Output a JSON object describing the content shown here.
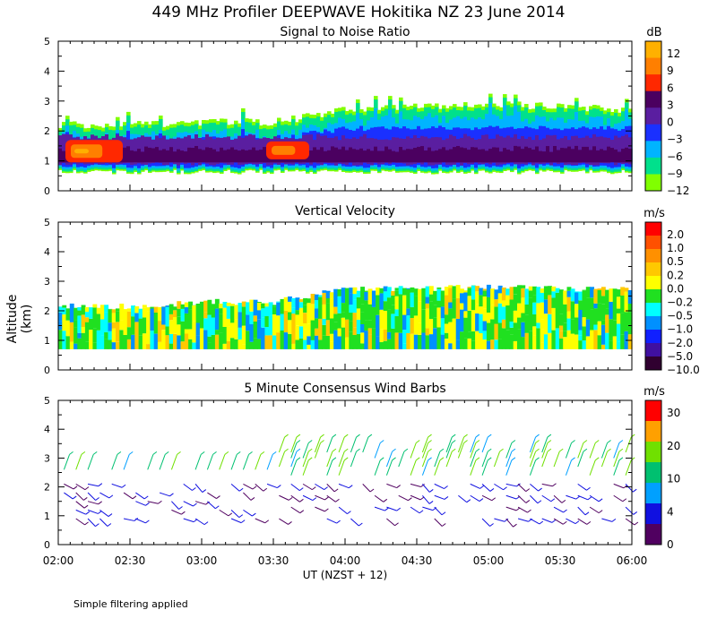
{
  "title": "449 MHz Profiler DEEPWAVE Hokitika NZ 23 June 2014",
  "ylabel": "Altitude (km)",
  "xlabel": "UT   (NZST + 12)",
  "footnote": "Simple filtering applied",
  "xticks": [
    "02:00",
    "02:30",
    "03:00",
    "03:30",
    "04:00",
    "04:30",
    "05:00",
    "05:30",
    "06:00"
  ],
  "yticks": [
    "0",
    "1",
    "2",
    "3",
    "4",
    "5"
  ],
  "chart_data": [
    {
      "type": "heatmap",
      "title": "Signal to Noise Ratio",
      "units": "dB",
      "x": "time UT 02:00-06:00",
      "ylabel": "Altitude (km)",
      "ylim": [
        0,
        5
      ],
      "colorbar_ticks": [
        "12",
        "9",
        "6",
        "3",
        "0",
        "−3",
        "−6",
        "−9",
        "−12"
      ],
      "colorbar_colors": [
        "#ffb000",
        "#ff7f00",
        "#ff2800",
        "#4b0060",
        "#5a1ea0",
        "#1a30ff",
        "#00b4ff",
        "#00e08c",
        "#80ff00"
      ],
      "layers": [
        {
          "name": "echo top (SNR > -12 dB)",
          "start_km": [
            2.2,
            2.2,
            2.3,
            2.3,
            2.7,
            2.8,
            2.9,
            2.8,
            2.7
          ]
        },
        {
          "name": "echo base",
          "start_km": [
            0.6,
            0.6,
            0.7,
            0.7,
            0.7,
            0.6,
            0.6,
            0.6,
            0.7
          ]
        }
      ]
    },
    {
      "type": "heatmap",
      "title": "Vertical Velocity",
      "units": "m/s",
      "ylim": [
        0,
        5
      ],
      "colorbar_ticks": [
        "2.0",
        "1.0",
        "0.5",
        "0.2",
        "0.0",
        "−0.2",
        "−0.5",
        "−1.0",
        "−2.0",
        "−5.0",
        "−10.0"
      ],
      "colorbar_colors": [
        "#ff0000",
        "#ff5000",
        "#ff9000",
        "#ffc800",
        "#ffff00",
        "#20e020",
        "#00ffff",
        "#0090ff",
        "#1020ff",
        "#4010a0",
        "#300030"
      ]
    },
    {
      "type": "scatter",
      "title": "5 Minute Consensus Wind Barbs",
      "units": "m/s",
      "ylim": [
        0,
        5
      ],
      "colorbar_ticks": [
        "30",
        "20",
        "10",
        "4",
        "0"
      ],
      "colorbar_colors": [
        "#ff0000",
        "#ffa000",
        "#70e000",
        "#00c070",
        "#00a0ff",
        "#1010e0",
        "#500060"
      ]
    }
  ]
}
